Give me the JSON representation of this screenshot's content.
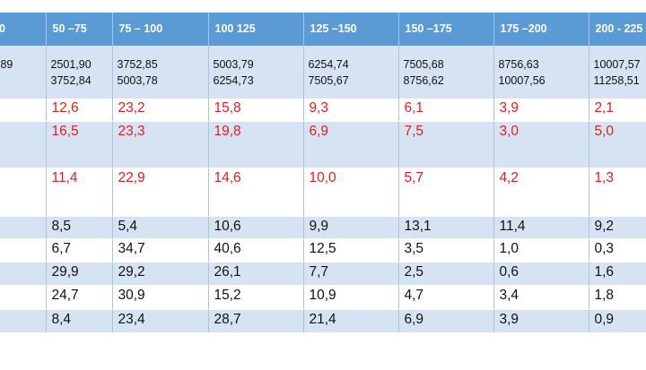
{
  "header": [
    "0",
    "50  –75",
    "75 – 100",
    "100 125",
    "125 –150",
    "150 –175",
    "175 –200",
    "200 - 225"
  ],
  "ranges": [
    {
      "top": "",
      "bottom": ",89"
    },
    {
      "top": "2501,90",
      "bottom": "3752,84"
    },
    {
      "top": "3752,85",
      "bottom": "5003,78"
    },
    {
      "top": "5003,79",
      "bottom": "6254,73"
    },
    {
      "top": "6254,74",
      "bottom": "7505,67"
    },
    {
      "top": "7505,68",
      "bottom": "8756,62"
    },
    {
      "top": "8756,63",
      "bottom": "10007,56"
    },
    {
      "top": "10007,57",
      "bottom": "11258,51"
    }
  ],
  "rows": [
    {
      "red": true,
      "band": false,
      "cells": [
        "",
        "12,6",
        "23,2",
        "15,8",
        "9,3",
        "6,1",
        "3,9",
        "2,1"
      ]
    },
    {
      "red": true,
      "band": true,
      "cells": [
        "",
        "16,5",
        "23,3",
        "19,8",
        "6,9",
        "7,5",
        "3,0",
        "5,0"
      ]
    },
    {
      "red": true,
      "band": false,
      "cells": [
        "",
        "11,4",
        "22,9",
        "14,6",
        "10,0",
        "5,7",
        "4,2",
        "1,3"
      ]
    },
    {
      "red": false,
      "band": true,
      "cells": [
        "",
        "8,5",
        "5,4",
        "10,6",
        "9,9",
        "13,1",
        "11,4",
        "9,2"
      ]
    },
    {
      "red": false,
      "band": false,
      "cells": [
        "",
        "6,7",
        "34,7",
        "40,6",
        "12,5",
        "3,5",
        "1,0",
        "0,3"
      ]
    },
    {
      "red": false,
      "band": true,
      "cells": [
        "",
        "29,9",
        "29,2",
        "26,1",
        "7,7",
        "2,5",
        "0,6",
        "1,6"
      ]
    },
    {
      "red": false,
      "band": false,
      "cells": [
        "",
        " 24,7",
        "30,9",
        "15,2",
        "10,9",
        "4,7",
        "3,4",
        "1,8"
      ]
    },
    {
      "red": false,
      "band": true,
      "cells": [
        "",
        " 8,4",
        " 23,4",
        " 28,7",
        " 21,4",
        " 6,9",
        " 3,9",
        "0,9"
      ]
    }
  ]
}
